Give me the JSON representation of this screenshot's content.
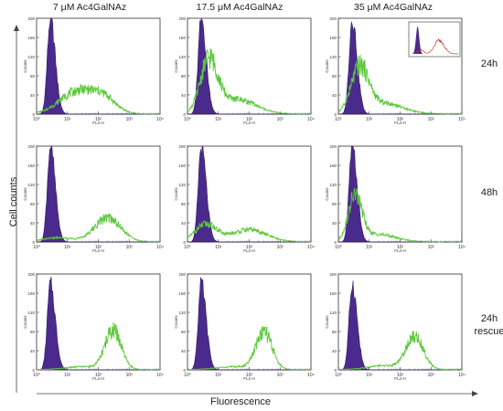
{
  "figure": {
    "columns": [
      "7 μM Ac4GalNAz",
      "17.5 μM Ac4GalNAz",
      "35 μM Ac4GalNAz"
    ],
    "rows": [
      {
        "label": "24h",
        "label2": ""
      },
      {
        "label": "48h",
        "label2": ""
      },
      {
        "label": "24h",
        "label2": "rescue"
      }
    ],
    "ylabel": "Cell counts",
    "xlabel": "Fluorescence"
  },
  "colors": {
    "control_fill": "#4a2a8c",
    "treated_line": "#5cc83a",
    "inset_line": "#c0392b",
    "axis": "#333333"
  },
  "chart_data": {
    "type": "area",
    "panel_axes": {
      "xlabel": "FL2-H",
      "ylabel": "Counts",
      "xscale": "log",
      "xlim": [
        1,
        10000
      ],
      "ylim": [
        0,
        200
      ],
      "xticks": [
        "10⁰",
        "10¹",
        "10²",
        "10³",
        "10⁴"
      ],
      "yticks": [
        "0",
        "40",
        "80",
        "120",
        "160",
        "200"
      ]
    },
    "panels": [
      {
        "row": 0,
        "col": 0,
        "control_peak": {
          "x": 2.8,
          "height": 200
        },
        "treated": [
          {
            "x": 20,
            "height": 46,
            "width": 0.55
          },
          {
            "x": 150,
            "height": 30,
            "width": 0.4
          }
        ]
      },
      {
        "row": 0,
        "col": 1,
        "control_peak": {
          "x": 2.8,
          "height": 200
        },
        "treated": [
          {
            "x": 5,
            "height": 108,
            "width": 0.28
          },
          {
            "x": 40,
            "height": 30,
            "width": 0.6
          }
        ]
      },
      {
        "row": 0,
        "col": 2,
        "control_peak": {
          "x": 2.8,
          "height": 200
        },
        "treated": [
          {
            "x": 5,
            "height": 92,
            "width": 0.28
          },
          {
            "x": 30,
            "height": 22,
            "width": 0.6
          }
        ],
        "inset": true
      },
      {
        "row": 1,
        "col": 0,
        "control_peak": {
          "x": 2.8,
          "height": 200
        },
        "treated": [
          {
            "x": 200,
            "height": 50,
            "width": 0.42
          },
          {
            "x": 5,
            "height": 8,
            "width": 0.5
          }
        ]
      },
      {
        "row": 1,
        "col": 1,
        "control_peak": {
          "x": 2.8,
          "height": 200
        },
        "treated": [
          {
            "x": 4,
            "height": 36,
            "width": 0.35
          },
          {
            "x": 100,
            "height": 25,
            "width": 0.55
          }
        ]
      },
      {
        "row": 1,
        "col": 2,
        "control_peak": {
          "x": 2.8,
          "height": 200
        },
        "treated": [
          {
            "x": 3.5,
            "height": 92,
            "width": 0.22
          },
          {
            "x": 20,
            "height": 15,
            "width": 0.55
          }
        ]
      },
      {
        "row": 2,
        "col": 0,
        "control_peak": {
          "x": 2.8,
          "height": 180
        },
        "treated": [
          {
            "x": 300,
            "height": 82,
            "width": 0.26
          },
          {
            "x": 30,
            "height": 6,
            "width": 0.5
          }
        ]
      },
      {
        "row": 2,
        "col": 1,
        "control_peak": {
          "x": 2.8,
          "height": 180
        },
        "treated": [
          {
            "x": 300,
            "height": 78,
            "width": 0.26
          },
          {
            "x": 30,
            "height": 6,
            "width": 0.5
          }
        ]
      },
      {
        "row": 2,
        "col": 2,
        "control_peak": {
          "x": 2.8,
          "height": 180
        },
        "treated": [
          {
            "x": 300,
            "height": 68,
            "width": 0.28
          },
          {
            "x": 30,
            "height": 8,
            "width": 0.5
          }
        ]
      }
    ]
  }
}
